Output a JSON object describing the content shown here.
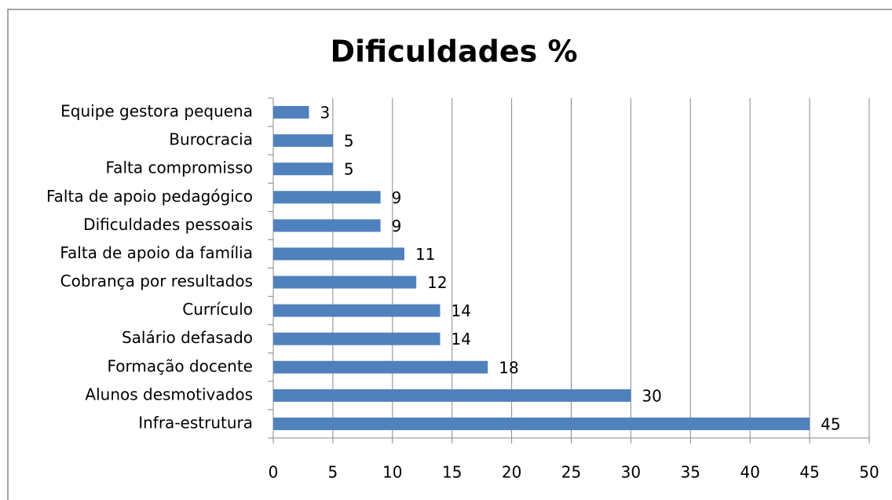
{
  "chart_data": {
    "type": "bar",
    "orientation": "horizontal",
    "title": "Dificuldades %",
    "categories": [
      "Equipe gestora pequena",
      "Burocracia",
      "Falta compromisso",
      "Falta de apoio pedagógico",
      "Dificuldades pessoais",
      "Falta de apoio da família",
      "Cobrança por resultados",
      "Currículo",
      "Salário defasado",
      "Formação docente",
      "Alunos desmotivados",
      "Infra-estrutura"
    ],
    "values": [
      3,
      5,
      5,
      9,
      9,
      11,
      12,
      14,
      14,
      18,
      30,
      45
    ],
    "color": "#4f81bd",
    "xlim": [
      0,
      50
    ],
    "xticks": [
      0,
      5,
      10,
      15,
      20,
      25,
      30,
      35,
      40,
      45,
      50
    ],
    "grid": true
  }
}
